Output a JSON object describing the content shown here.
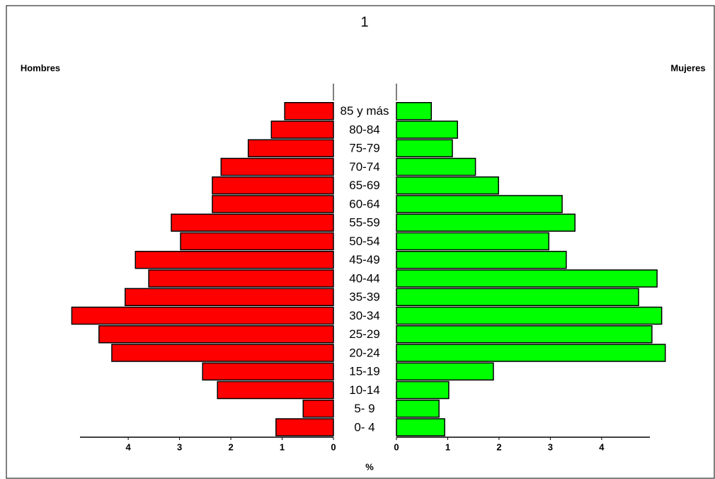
{
  "chart_data": {
    "type": "pyramid",
    "title": "1",
    "xlabel": "%",
    "categories": [
      "0- 4",
      "5- 9",
      "10-14",
      "15-19",
      "20-24",
      "25-29",
      "30-34",
      "35-39",
      "40-44",
      "45-49",
      "50-54",
      "55-59",
      "60-64",
      "65-69",
      "70-74",
      "75-79",
      "80-84",
      "85 y más"
    ],
    "series": [
      {
        "name": "Hombres",
        "color": "#ff0000",
        "values": [
          1.12,
          0.59,
          2.26,
          2.55,
          4.32,
          4.57,
          5.1,
          4.06,
          3.6,
          3.86,
          2.98,
          3.16,
          2.36,
          2.36,
          2.19,
          1.66,
          1.21,
          0.95
        ]
      },
      {
        "name": "Mujeres",
        "color": "#00ff00",
        "values": [
          0.94,
          0.83,
          1.02,
          1.89,
          5.24,
          4.98,
          5.17,
          4.72,
          5.08,
          3.31,
          2.97,
          3.48,
          3.23,
          1.99,
          1.54,
          1.09,
          1.19,
          0.68
        ]
      }
    ],
    "xlim": [
      0,
      4.94
    ],
    "xticks": [
      0,
      1,
      2,
      3,
      4
    ]
  }
}
